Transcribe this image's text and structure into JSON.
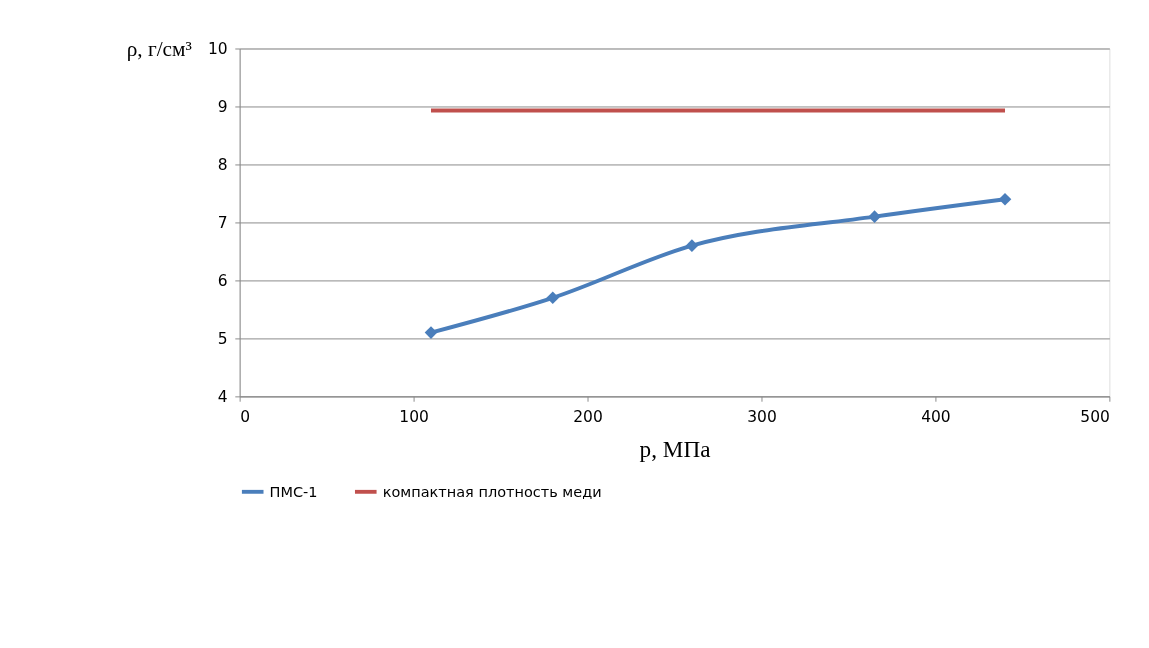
{
  "chart_data": {
    "type": "line",
    "xlabel": "p, МПа",
    "ylabel": "ρ, г/см³",
    "series": [
      {
        "name": "ПМС-1",
        "color": "#4a7ebb",
        "marker": "diamond",
        "x": [
          110,
          180,
          260,
          365,
          440
        ],
        "values": [
          5.1,
          5.7,
          6.6,
          7.1,
          7.4
        ]
      },
      {
        "name": "компактная плотность меди",
        "color": "#c0504d",
        "marker": "none",
        "x": [
          110,
          440
        ],
        "values": [
          8.93,
          8.93
        ]
      }
    ],
    "xlim": [
      0,
      500
    ],
    "xticks": [
      0,
      100,
      200,
      300,
      400,
      500
    ],
    "ylim": [
      4,
      10
    ],
    "yticks": [
      4,
      5,
      6,
      7,
      8,
      9,
      10
    ],
    "grid": "y",
    "legend": "bottom"
  }
}
